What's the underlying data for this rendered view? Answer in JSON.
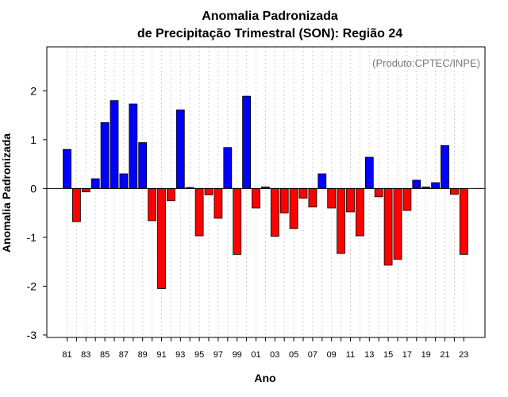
{
  "chart_data": {
    "type": "bar",
    "title_line1": "Anomalia Padronizada",
    "title_line2": "de Precipitação Trimestral (SON): Região 24",
    "xlabel": "Ano",
    "ylabel": "Anomalia Padronizada",
    "credit": "(Produto:CPTEC/INPE)",
    "ylim": [
      -3.05,
      2.9
    ],
    "yticks": [
      -3,
      -2,
      -1,
      0,
      1,
      2
    ],
    "ytick_labels": [
      "-3",
      "-2",
      "-1",
      "0",
      "1",
      "2"
    ],
    "grid": true,
    "colors": {
      "positive": "#0000ff",
      "negative": "#ff0000",
      "grid": "#d0d0d0"
    },
    "categories": [
      "81",
      "82",
      "83",
      "84",
      "85",
      "86",
      "87",
      "88",
      "89",
      "90",
      "91",
      "92",
      "93",
      "94",
      "95",
      "96",
      "97",
      "98",
      "99",
      "00",
      "01",
      "02",
      "03",
      "04",
      "05",
      "06",
      "07",
      "08",
      "09",
      "10",
      "11",
      "12",
      "13",
      "14",
      "15",
      "16",
      "17",
      "18",
      "19",
      "20",
      "21",
      "22",
      "23"
    ],
    "xtick_labels": [
      "81",
      "83",
      "85",
      "87",
      "89",
      "91",
      "93",
      "95",
      "97",
      "99",
      "01",
      "03",
      "05",
      "07",
      "09",
      "11",
      "13",
      "15",
      "17",
      "19",
      "21",
      "23"
    ],
    "values": [
      0.8,
      -0.68,
      -0.07,
      0.2,
      1.35,
      1.8,
      0.3,
      1.73,
      0.94,
      -0.66,
      -2.05,
      -0.25,
      1.61,
      0.02,
      -0.97,
      -0.13,
      -0.61,
      0.84,
      -1.35,
      1.89,
      -0.4,
      0.03,
      -0.98,
      -0.5,
      -0.82,
      -0.2,
      -0.38,
      0.3,
      -0.4,
      -1.33,
      -0.48,
      -0.97,
      0.64,
      -0.17,
      -1.57,
      -1.45,
      -0.45,
      0.17,
      0.03,
      0.12,
      0.88,
      -0.12,
      -1.35
    ]
  }
}
